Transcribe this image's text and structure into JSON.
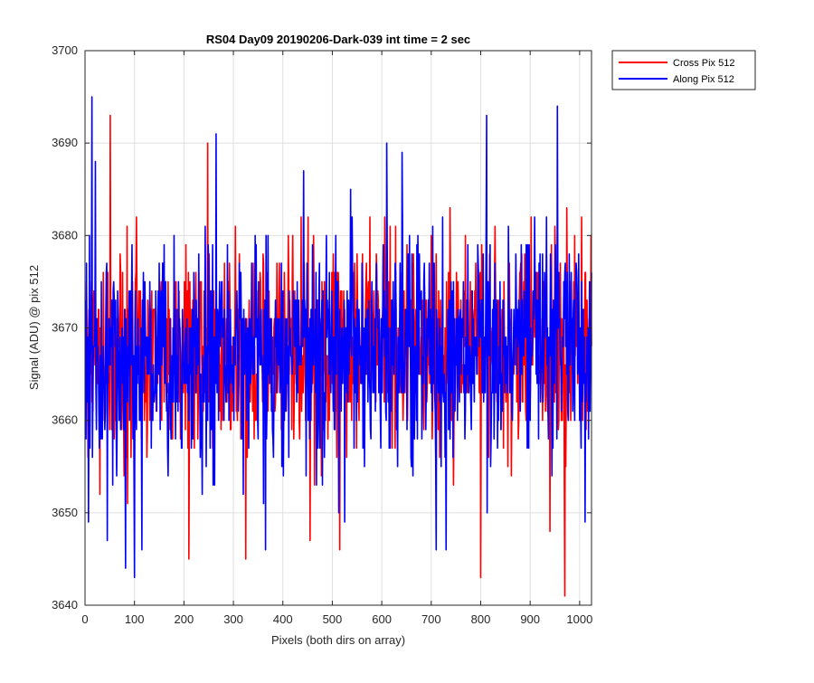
{
  "chart_data": {
    "type": "line",
    "title": "RS04 Day09 20190206-Dark-039 int time = 2 sec",
    "xlabel": "Pixels (both dirs on array)",
    "ylabel": "Signal (ADU) @ pix 512",
    "xlim": [
      0,
      1024
    ],
    "ylim": [
      3640,
      3700
    ],
    "xticks": [
      0,
      100,
      200,
      300,
      400,
      500,
      600,
      700,
      800,
      900,
      1000
    ],
    "yticks": [
      3640,
      3650,
      3660,
      3670,
      3680,
      3690,
      3700
    ],
    "grid": true,
    "legend_position": "outside-top-right",
    "series": [
      {
        "name": "Cross Pix 512",
        "color": "#ff0000",
        "x_start": 1,
        "x_step": 1,
        "count": 1024,
        "mean": 3668,
        "spread": 5.5,
        "min": 3641,
        "max": 3693,
        "extremes": [
          {
            "x": 51,
            "y": 3693
          },
          {
            "x": 248,
            "y": 3690
          },
          {
            "x": 30,
            "y": 3652
          },
          {
            "x": 210,
            "y": 3645
          },
          {
            "x": 325,
            "y": 3645
          },
          {
            "x": 455,
            "y": 3647
          },
          {
            "x": 515,
            "y": 3646
          },
          {
            "x": 800,
            "y": 3643
          },
          {
            "x": 970,
            "y": 3641
          },
          {
            "x": 940,
            "y": 3648
          }
        ]
      },
      {
        "name": "Along Pix 512",
        "color": "#0000ff",
        "x_start": 1,
        "x_step": 1,
        "count": 1024,
        "mean": 3667.5,
        "spread": 6,
        "min": 3643,
        "max": 3695,
        "extremes": [
          {
            "x": 14,
            "y": 3695
          },
          {
            "x": 265,
            "y": 3691
          },
          {
            "x": 610,
            "y": 3690
          },
          {
            "x": 812,
            "y": 3693
          },
          {
            "x": 955,
            "y": 3694
          },
          {
            "x": 100,
            "y": 3643
          },
          {
            "x": 82,
            "y": 3644
          },
          {
            "x": 45,
            "y": 3647
          },
          {
            "x": 115,
            "y": 3646
          },
          {
            "x": 730,
            "y": 3646
          },
          {
            "x": 365,
            "y": 3646
          },
          {
            "x": 525,
            "y": 3649
          }
        ]
      }
    ]
  }
}
